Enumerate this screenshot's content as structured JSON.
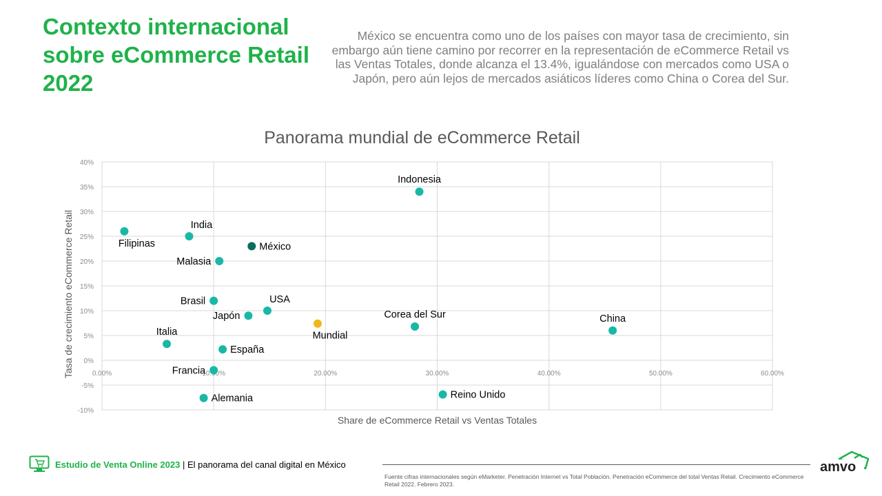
{
  "header": {
    "title": "Contexto internacional sobre eCommerce Retail 2022",
    "intro": "México se encuentra como uno de los países con mayor tasa de crecimiento, sin embargo aún tiene camino por recorrer en la representación de eCommerce Retail vs las Ventas Totales, donde alcanza el 13.4%, igualándose con mercados como USA o Japón, pero aún lejos de mercados asiáticos líderes como China o Corea del Sur."
  },
  "chart_data": {
    "type": "scatter",
    "title": "Panorama mundial de eCommerce Retail",
    "xlabel": "Share de eCommerce Retail vs Ventas Totales",
    "ylabel": "Tasa de crecimiento  eCommerce Retail",
    "xlim": [
      0,
      60
    ],
    "ylim": [
      -10,
      40
    ],
    "x_ticks": [
      0,
      10,
      20,
      30,
      40,
      50,
      60
    ],
    "x_tick_labels": [
      "0.00%",
      "10.00%",
      "20.00%",
      "30.00%",
      "40.00%",
      "50.00%",
      "60.00%"
    ],
    "y_ticks": [
      -10,
      -5,
      0,
      5,
      10,
      15,
      20,
      25,
      30,
      35,
      40
    ],
    "y_tick_labels": [
      "-10%",
      "-5%",
      "0%",
      "5%",
      "10%",
      "15%",
      "20%",
      "25%",
      "30%",
      "35%",
      "40%"
    ],
    "grid": true,
    "colors": {
      "default": "#19b8a6",
      "highlight": "#0b6b5c",
      "world": "#f2b619"
    },
    "points": [
      {
        "label": "Indonesia",
        "x": 28.4,
        "y": 34,
        "style": "default",
        "label_pos": "above"
      },
      {
        "label": "India",
        "x": 7.8,
        "y": 25,
        "style": "default",
        "label_pos": "above-right"
      },
      {
        "label": "Filipinas",
        "x": 2.0,
        "y": 26,
        "style": "default",
        "label_pos": "below-right"
      },
      {
        "label": "México",
        "x": 13.4,
        "y": 23,
        "style": "highlight",
        "label_pos": "right"
      },
      {
        "label": "Malasia",
        "x": 10.5,
        "y": 20,
        "style": "default",
        "label_pos": "left"
      },
      {
        "label": "Brasil",
        "x": 10.0,
        "y": 12,
        "style": "default",
        "label_pos": "left"
      },
      {
        "label": "USA",
        "x": 14.8,
        "y": 10,
        "style": "default",
        "label_pos": "above-right"
      },
      {
        "label": "Japón",
        "x": 13.1,
        "y": 9,
        "style": "default",
        "label_pos": "left"
      },
      {
        "label": "Mundial",
        "x": 19.3,
        "y": 7.4,
        "style": "world",
        "label_pos": "below-right"
      },
      {
        "label": "Corea del Sur",
        "x": 28.0,
        "y": 6.8,
        "style": "default",
        "label_pos": "above"
      },
      {
        "label": "China",
        "x": 45.7,
        "y": 6,
        "style": "default",
        "label_pos": "above"
      },
      {
        "label": "Italia",
        "x": 5.8,
        "y": 3.3,
        "style": "default",
        "label_pos": "above"
      },
      {
        "label": "España",
        "x": 10.8,
        "y": 2.2,
        "style": "default",
        "label_pos": "right"
      },
      {
        "label": "Francia",
        "x": 10.0,
        "y": -2,
        "style": "default",
        "label_pos": "left"
      },
      {
        "label": "Alemania",
        "x": 9.1,
        "y": -7.6,
        "style": "default",
        "label_pos": "right"
      },
      {
        "label": "Reino Unido",
        "x": 30.5,
        "y": -6.9,
        "style": "default",
        "label_pos": "right"
      }
    ]
  },
  "footer": {
    "brand_strong": "Estudio de Venta Online 2023",
    "brand_rest": " | El panorama del canal digital en México",
    "source": "Fuente cifras internacionales según eMarketer. Penetración Internet vs Total Población. Penetración eCommerce del total Ventas Retail. Crecimiento eCommerce Retail 2022. Febrero 2023.",
    "logo_text": "amvo"
  }
}
